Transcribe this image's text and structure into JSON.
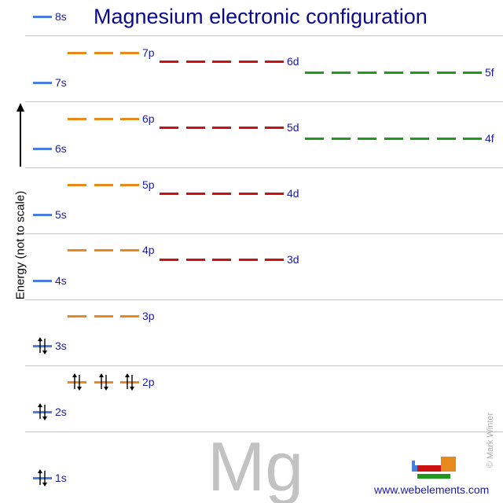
{
  "title": "Magnesium electronic configuration",
  "element_symbol": "Mg",
  "y_axis_label": "Energy (not to scale)",
  "website": "www.webelements.com",
  "copyright": "© Mark Winter",
  "colors": {
    "s": "#4a7de0",
    "p": "#e8891e",
    "d": "#cc1111",
    "f": "#1f9a1f",
    "label": "#1a1aa8",
    "title": "#0a0a8c"
  },
  "orbitals": {
    "1s": {
      "label": "1s",
      "electrons": 2
    },
    "2s": {
      "label": "2s",
      "electrons": 2
    },
    "2p": {
      "label": "2p",
      "electrons": 6
    },
    "3s": {
      "label": "3s",
      "electrons": 2
    },
    "3p": {
      "label": "3p",
      "electrons": 0
    },
    "4s": {
      "label": "4s",
      "electrons": 0
    },
    "3d": {
      "label": "3d",
      "electrons": 0
    },
    "4p": {
      "label": "4p",
      "electrons": 0
    },
    "5s": {
      "label": "5s",
      "electrons": 0
    },
    "4d": {
      "label": "4d",
      "electrons": 0
    },
    "5p": {
      "label": "5p",
      "electrons": 0
    },
    "6s": {
      "label": "6s",
      "electrons": 0
    },
    "4f": {
      "label": "4f",
      "electrons": 0
    },
    "5d": {
      "label": "5d",
      "electrons": 0
    },
    "6p": {
      "label": "6p",
      "electrons": 0
    },
    "7s": {
      "label": "7s",
      "electrons": 0
    },
    "5f": {
      "label": "5f",
      "electrons": 0
    },
    "6d": {
      "label": "6d",
      "electrons": 0
    },
    "7p": {
      "label": "7p",
      "electrons": 0
    },
    "8s": {
      "label": "8s",
      "electrons": 0
    }
  }
}
